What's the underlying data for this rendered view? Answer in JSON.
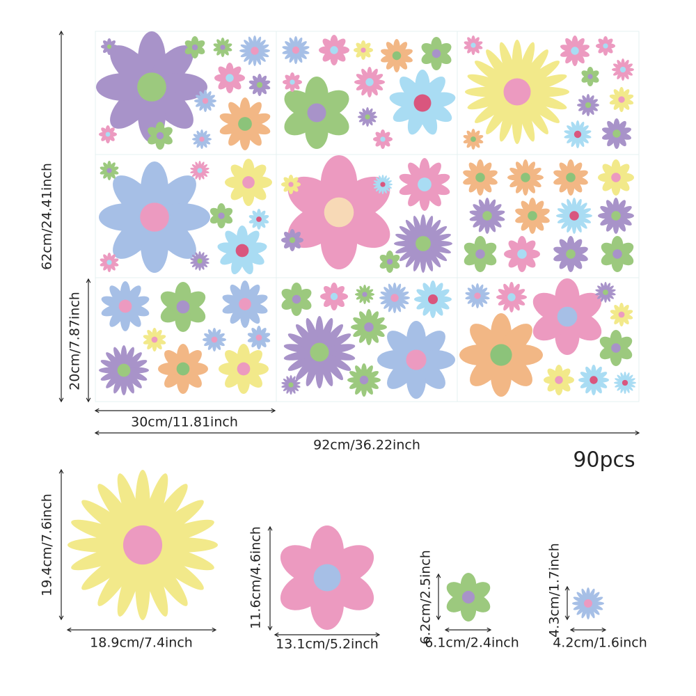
{
  "sheet": {
    "height_label": "62cm/24.41inch",
    "panel_height_label": "20cm/7.87inch",
    "panel_width_label": "30cm/11.81inch",
    "width_label": "92cm/36.22inch",
    "count": "90pcs"
  },
  "samples": [
    {
      "height_label": "19.4cm/7.6inch",
      "width_label": "18.9cm/7.4inch"
    },
    {
      "height_label": "11.6cm/4.6inch",
      "width_label": "13.1cm/5.2inch"
    },
    {
      "height_label": "6.2cm/2.5inch",
      "width_label": "6.1cm/2.4inch"
    },
    {
      "height_label": "4.3cm/1.7inch",
      "width_label": "4.2cm/1.6inch"
    }
  ]
}
